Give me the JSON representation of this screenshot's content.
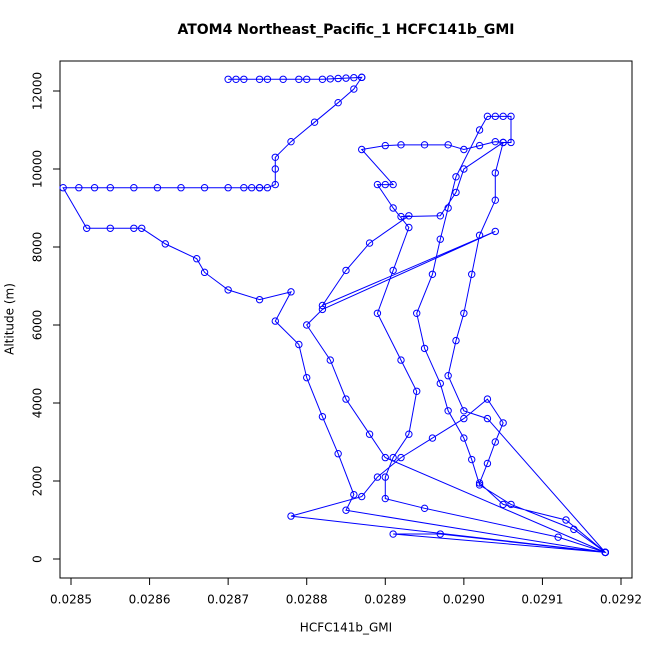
{
  "chart_data": {
    "type": "line",
    "title": "ATOM4 Northeast_Pacific_1 HCFC141b_GMI",
    "x_label": "HCFC141b_GMI",
    "y_label": "Altitude (m)",
    "color": "#0000ff",
    "xlim": [
      0.028486,
      0.029214
    ],
    "ylim": [
      -487,
      12769
    ],
    "xticks": [
      0.0285,
      0.0286,
      0.0287,
      0.0288,
      0.0289,
      {
        "value": 0.029,
        "label": "0.0290"
      },
      0.0291,
      0.0292
    ],
    "yticks": [
      0,
      2000,
      4000,
      6000,
      8000,
      10000,
      12000
    ],
    "x": [
      0.0287,
      0.02871,
      0.02872,
      0.02874,
      0.02875,
      0.02877,
      0.02879,
      0.0288,
      0.02882,
      0.02883,
      0.02884,
      0.02885,
      0.02886,
      0.02887,
      0.02887,
      0.02886,
      0.02884,
      0.02881,
      0.02878,
      0.02876,
      0.02876,
      0.02876,
      0.02875,
      0.02874,
      0.02874,
      0.02873,
      0.02872,
      0.0287,
      0.02867,
      0.02864,
      0.02861,
      0.02858,
      0.02855,
      0.02853,
      0.02851,
      0.02849,
      0.02852,
      0.02855,
      0.02858,
      0.02859,
      0.02862,
      0.02866,
      0.02867,
      0.0287,
      0.02874,
      0.02878,
      0.02876,
      0.02879,
      0.0288,
      0.02882,
      0.02884,
      0.02886,
      0.02885,
      0.02918,
      0.02878,
      0.02887,
      0.02889,
      0.02892,
      0.02896,
      0.029,
      0.02903,
      0.02905,
      0.02904,
      0.02903,
      0.02902,
      0.02905,
      0.02913,
      0.02918,
      0.02914,
      0.02906,
      0.02902,
      0.02901,
      0.029,
      0.02898,
      0.02897,
      0.02895,
      0.02894,
      0.02896,
      0.02897,
      0.02898,
      0.02899,
      0.02902,
      0.02903,
      0.02904,
      0.02905,
      0.02906,
      0.02906,
      0.02905,
      0.02904,
      0.02904,
      0.02902,
      0.02901,
      0.029,
      0.02899,
      0.02898,
      0.029,
      0.02903,
      0.02918,
      0.02912,
      0.02895,
      0.0289,
      0.0289,
      0.02891,
      0.02893,
      0.02894,
      0.02892,
      0.02889,
      0.02891,
      0.02893,
      0.02891,
      0.02889,
      0.0289,
      0.02891,
      0.02887,
      0.0289,
      0.02892,
      0.02895,
      0.02898,
      0.029,
      0.02902,
      0.02904,
      0.02905,
      0.029,
      0.02899,
      0.02897,
      0.02892,
      0.02893,
      0.02888,
      0.02885,
      0.02882,
      0.02904,
      0.02882,
      0.0288,
      0.02883,
      0.02885,
      0.02888,
      0.0289,
      0.02918,
      0.02891,
      0.02897,
      0.02918
    ],
    "values": [
      12300,
      12300,
      12300,
      12300,
      12300,
      12300,
      12300,
      12300,
      12300,
      12310,
      12320,
      12330,
      12340,
      12350,
      12350,
      12050,
      11700,
      11200,
      10700,
      10300,
      10000,
      9600,
      9520,
      9520,
      9520,
      9520,
      9520,
      9520,
      9520,
      9520,
      9520,
      9520,
      9520,
      9520,
      9520,
      9520,
      8480,
      8480,
      8480,
      8480,
      8080,
      7700,
      7350,
      6900,
      6650,
      6850,
      6100,
      5500,
      4650,
      3650,
      2700,
      1650,
      1250,
      170,
      1100,
      1600,
      2100,
      2600,
      3100,
      3600,
      4100,
      3490,
      3000,
      2450,
      1950,
      1400,
      1000,
      170,
      760,
      1400,
      1900,
      2550,
      3100,
      3800,
      4500,
      5400,
      6300,
      7300,
      8200,
      9000,
      9800,
      11000,
      11350,
      11350,
      11350,
      11350,
      10680,
      10680,
      9900,
      9200,
      8300,
      7300,
      6300,
      5600,
      4700,
      3800,
      3600,
      170,
      560,
      1300,
      1550,
      2100,
      2600,
      3200,
      4300,
      5100,
      6300,
      7400,
      8500,
      9000,
      9600,
      9600,
      9600,
      10500,
      10600,
      10620,
      10620,
      10620,
      10500,
      10600,
      10700,
      10680,
      10000,
      9400,
      8800,
      8780,
      8800,
      8100,
      7400,
      6500,
      8400,
      6400,
      6000,
      5100,
      4100,
      3200,
      2600,
      170,
      640,
      640,
      170
    ]
  }
}
